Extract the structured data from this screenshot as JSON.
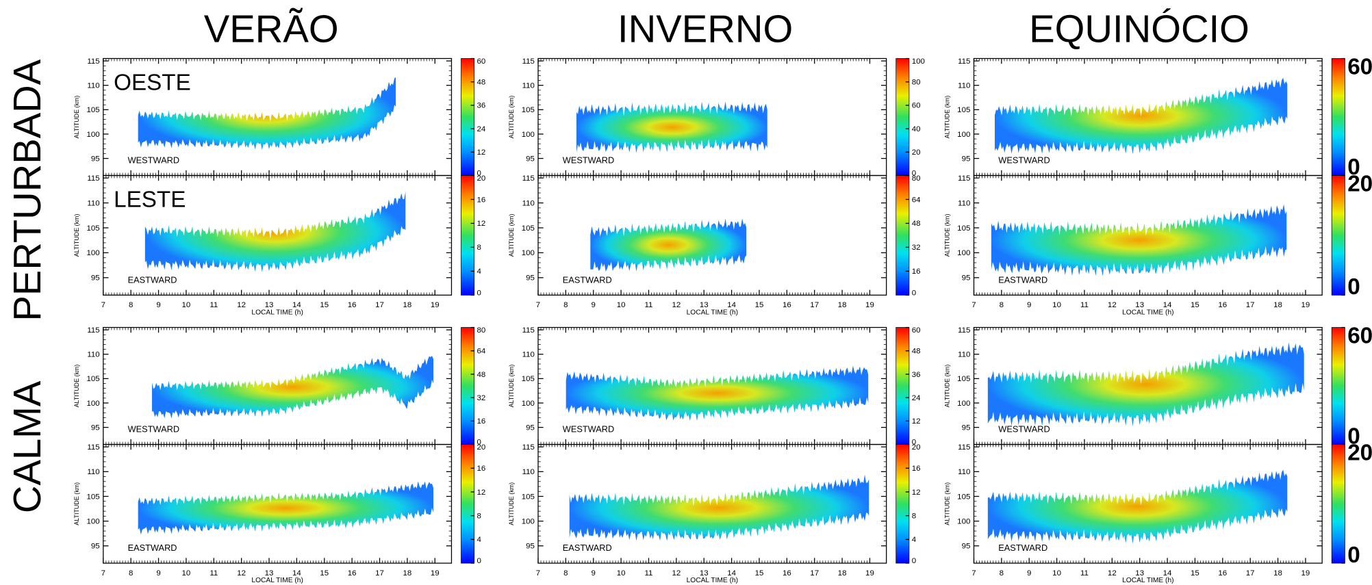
{
  "figure": {
    "column_titles": [
      "VERÃO",
      "INVERNO",
      "EQUINÓCIO"
    ],
    "row_titles": [
      "PERTURBADA",
      "CALMA"
    ],
    "x_label": "LOCAL TIME (h)",
    "y_label": "ALTITUDE (km)",
    "xlim": [
      7,
      19.6
    ],
    "xticks": [
      7,
      8,
      9,
      10,
      11,
      12,
      13,
      14,
      15,
      16,
      17,
      18,
      19
    ],
    "ylim": [
      91.5,
      115.5
    ],
    "yticks": [
      95,
      100,
      105,
      110,
      115
    ],
    "panels": [
      {
        "label": "OESTE",
        "direction": "WESTWARD",
        "cbar_ticks": [
          0,
          12,
          24,
          36,
          48,
          60
        ]
      },
      {
        "direction": "WESTWARD",
        "cbar_ticks": [
          0,
          20,
          40,
          60,
          80,
          100
        ]
      },
      {
        "direction": "WESTWARD",
        "cbar_ticks": [
          0,
          60
        ]
      },
      {
        "label": "LESTE",
        "direction": "EASTWARD",
        "cbar_ticks": [
          0,
          4,
          8,
          12,
          16,
          20
        ]
      },
      {
        "direction": "EASTWARD",
        "cbar_ticks": [
          0,
          16,
          32,
          48,
          64,
          80
        ]
      },
      {
        "direction": "EASTWARD",
        "cbar_ticks": [
          0,
          20
        ]
      },
      {
        "direction": "WESTWARD",
        "cbar_ticks": [
          0,
          16,
          32,
          48,
          64,
          80
        ]
      },
      {
        "direction": "WESTWARD",
        "cbar_ticks": [
          0,
          12,
          24,
          36,
          48,
          60
        ]
      },
      {
        "direction": "WESTWARD",
        "cbar_ticks": [
          0,
          60
        ]
      },
      {
        "direction": "EASTWARD",
        "cbar_ticks": [
          0,
          4,
          8,
          12,
          16,
          20
        ]
      },
      {
        "direction": "EASTWARD",
        "cbar_ticks": [
          0,
          4,
          8,
          12,
          16,
          20
        ]
      },
      {
        "direction": "EASTWARD",
        "cbar_ticks": [
          0,
          20
        ]
      }
    ]
  }
}
